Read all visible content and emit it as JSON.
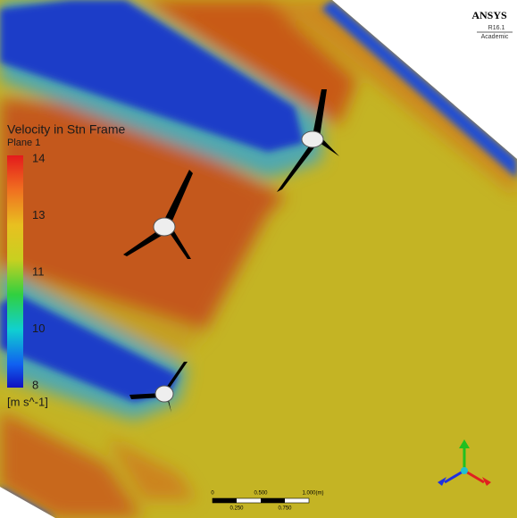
{
  "logo": {
    "brand": "ANSYS",
    "version": "R16.1",
    "edition": "Academic"
  },
  "legend": {
    "title": "Velocity in Stn Frame",
    "subtitle": "Plane 1",
    "ticks": [
      "14",
      "13",
      "11",
      "10",
      "8"
    ],
    "unit": "[m s^-1]"
  },
  "scale_bar": {
    "top_labels": [
      "0",
      "0.500",
      "1.000"
    ],
    "unit": "(m)",
    "bottom_labels": [
      "0.250",
      "0.750"
    ]
  }
}
